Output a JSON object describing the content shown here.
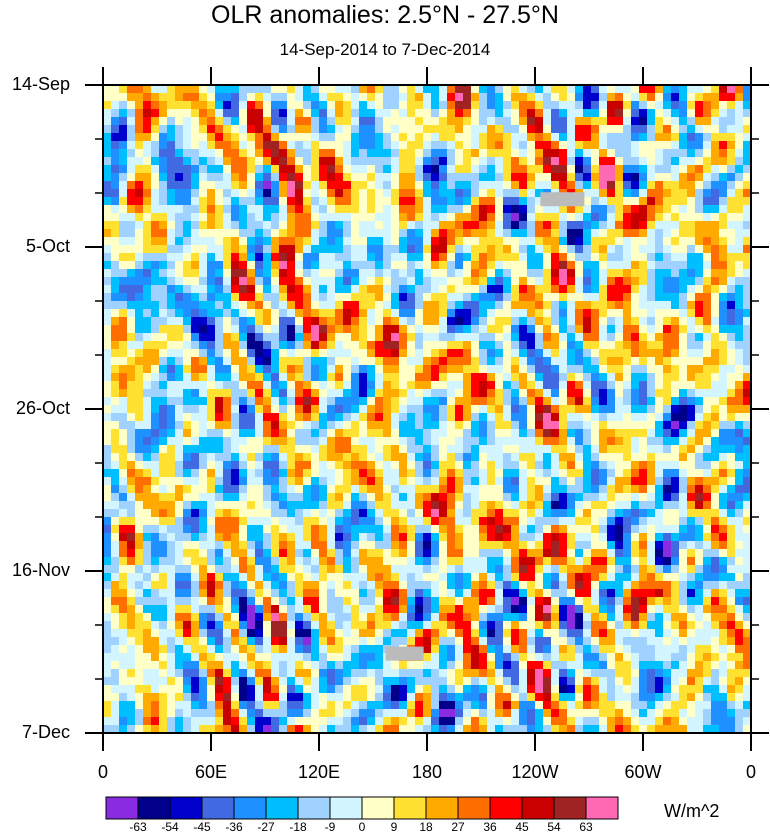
{
  "chart_data": {
    "type": "heatmap",
    "title": "OLR anomalies: 2.5°N - 27.5°N",
    "subtitle": "14-Sep-2014 to 7-Dec-2014",
    "xlabel": "",
    "ylabel": "",
    "x_tick_labels": [
      "0",
      "60E",
      "120E",
      "180",
      "120W",
      "60W",
      "0"
    ],
    "x_tick_lon": [
      0,
      60,
      120,
      180,
      240,
      300,
      360
    ],
    "y_tick_labels": [
      "14-Sep",
      "5-Oct",
      "26-Oct",
      "16-Nov",
      "7-Dec"
    ],
    "y_tick_day": [
      0,
      21,
      42,
      63,
      84
    ],
    "xlim": [
      0,
      360
    ],
    "ylim_days": [
      0,
      84
    ],
    "colorbar": {
      "units": "W/m^2",
      "levels": [
        -63,
        -54,
        -45,
        -36,
        -27,
        -18,
        -9,
        0,
        9,
        18,
        27,
        36,
        45,
        54,
        63
      ],
      "level_labels": [
        "-63",
        "-54",
        "-45",
        "-36",
        "-27",
        "-18",
        "-9",
        "0",
        "9",
        "18",
        "27",
        "36",
        "45",
        "54",
        "63"
      ],
      "colors": [
        "#8a2be2",
        "#00008b",
        "#0000cd",
        "#4169e1",
        "#1e90ff",
        "#00bfff",
        "#a0d2ff",
        "#d2f5ff",
        "#ffffc8",
        "#ffe132",
        "#ffaa00",
        "#ff6e00",
        "#ff0000",
        "#c80000",
        "#a02323",
        "#ff69b4"
      ]
    },
    "missing_color": "#bbbbbb"
  }
}
